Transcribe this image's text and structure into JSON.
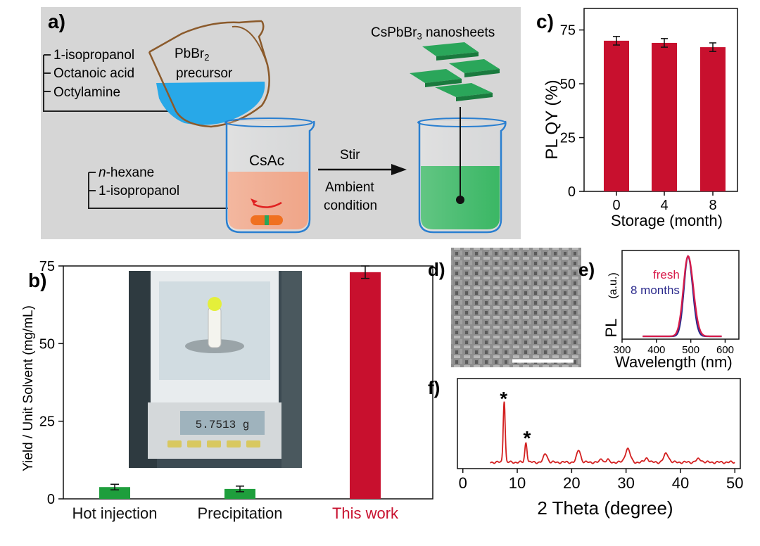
{
  "panels": {
    "a": {
      "label": "a)",
      "precursor_lines": [
        "1-isopropanol",
        "Octanoic acid",
        "Octylamine"
      ],
      "precursor_title_1": "PbBr",
      "precursor_title_sub": "2",
      "precursor_title_2": "precursor",
      "solvent_lines_italic": "n",
      "solvent_line_1_rest": "-hexane",
      "solvent_line_2": "1-isopropanol",
      "beaker_label": "CsAc",
      "arrow_top": "Stir",
      "arrow_bottom_1": "Ambient",
      "arrow_bottom_2": "condition",
      "product_pre": "CsPbBr",
      "product_sub": "3",
      "product_post": " nanosheets",
      "colors": {
        "background": "#d6d6d6",
        "precursor_liquid": "#28a8e8",
        "reaction_liquid": "#f0a080",
        "product_liquid": "#2fb35a",
        "nanosheet": "#2aa65a"
      }
    },
    "d": {
      "label": "d)"
    },
    "e": {
      "label": "e)"
    },
    "f": {
      "label": "f)"
    }
  },
  "chart_data": [
    {
      "id": "b",
      "panel_label": "b)",
      "type": "bar",
      "categories": [
        "Hot injection",
        "Precipitation",
        "This work"
      ],
      "values": [
        3.8,
        3.2,
        73
      ],
      "errors": [
        0.9,
        0.9,
        2.0
      ],
      "bar_colors": [
        "#1e9e3c",
        "#1e9e3c",
        "#c8102e"
      ],
      "category_label_colors": [
        "#111111",
        "#111111",
        "#c8102e"
      ],
      "ylabel": "Yield / Unit Solvent (mg/mL)",
      "ylim": [
        0,
        75
      ],
      "yticks": [
        0,
        25,
        50,
        75
      ],
      "inset": "photo of analytical balance",
      "balance_display": "5.7513 g"
    },
    {
      "id": "c",
      "panel_label": "c)",
      "type": "bar",
      "categories": [
        "0",
        "4",
        "8"
      ],
      "values": [
        70,
        69,
        67
      ],
      "errors": [
        2,
        2,
        2
      ],
      "bar_color": "#c8102e",
      "xlabel": "Storage (month)",
      "ylabel": "PL QY (%)",
      "ylim": [
        0,
        85
      ],
      "yticks": [
        0,
        25,
        50,
        75
      ]
    },
    {
      "id": "e",
      "panel_label": "e)",
      "type": "line",
      "xlabel": "Wavelength (nm)",
      "ylabel": "PL",
      "ylabel_unit": "(a.u.)",
      "xlim": [
        300,
        640
      ],
      "xticks": [
        300,
        400,
        500,
        600
      ],
      "series": [
        {
          "name": "fresh",
          "color": "#d81b4a",
          "peak": 492,
          "fwhm": 32,
          "x_range": [
            360,
            590
          ]
        },
        {
          "name": "8 months",
          "color": "#2b2a8c",
          "peak": 492,
          "fwhm": 28,
          "x_range": [
            360,
            590
          ]
        }
      ]
    },
    {
      "id": "f",
      "panel_label": "f)",
      "type": "line",
      "xlabel": "2 Theta (degree)",
      "xlim": [
        -1,
        51
      ],
      "xticks": [
        0,
        10,
        20,
        30,
        40,
        50
      ],
      "color": "#d32020",
      "annotations": [
        {
          "text": "*",
          "x": 7.5
        },
        {
          "text": "*",
          "x": 11.8
        }
      ],
      "peaks": [
        {
          "x": 7.6,
          "h": 1.0,
          "w": 0.18
        },
        {
          "x": 11.6,
          "h": 0.32,
          "w": 0.2
        },
        {
          "x": 15.2,
          "h": 0.14,
          "w": 0.35
        },
        {
          "x": 21.3,
          "h": 0.2,
          "w": 0.35
        },
        {
          "x": 25.5,
          "h": 0.06,
          "w": 0.25
        },
        {
          "x": 26.6,
          "h": 0.05,
          "w": 0.2
        },
        {
          "x": 30.3,
          "h": 0.22,
          "w": 0.45
        },
        {
          "x": 33.8,
          "h": 0.07,
          "w": 0.35
        },
        {
          "x": 37.4,
          "h": 0.14,
          "w": 0.45
        },
        {
          "x": 43.4,
          "h": 0.05,
          "w": 0.5
        }
      ],
      "x_range": [
        5,
        50
      ]
    }
  ]
}
